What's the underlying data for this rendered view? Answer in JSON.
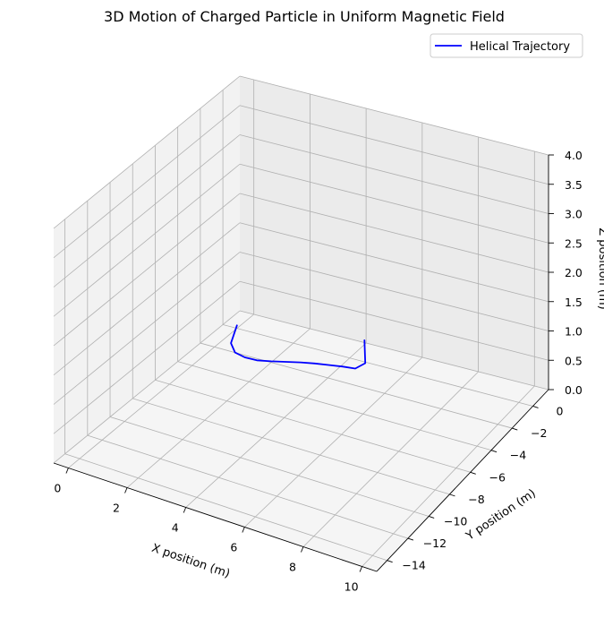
{
  "chart_data": {
    "type": "line",
    "projection": "3d",
    "title": "3D Motion of Charged Particle in Uniform Magnetic Field",
    "xlabel": "X position (m)",
    "ylabel": "Y position (m)",
    "zlabel": "Z position (m)",
    "xlim": [
      -0.5,
      10.5
    ],
    "ylim": [
      -15,
      1.5
    ],
    "zlim": [
      0,
      4
    ],
    "xticks": [
      "0",
      "2",
      "4",
      "6",
      "8",
      "10"
    ],
    "yticks": [
      "0",
      "−2",
      "−4",
      "−6",
      "−8",
      "−10",
      "−12",
      "−14"
    ],
    "zticks": [
      "0.0",
      "0.5",
      "1.0",
      "1.5",
      "2.0",
      "2.5",
      "3.0",
      "3.5",
      "4.0"
    ],
    "grid": true,
    "legend_position": "top-right",
    "series": [
      {
        "name": "Helical Trajectory",
        "color": "#0000ff",
        "x": [
          0,
          0.5,
          1,
          1.5,
          2,
          2.5,
          3,
          3.5,
          4,
          4.5,
          5,
          5.5,
          5.7,
          5.1
        ],
        "y": [
          0,
          -1.8,
          -2.7,
          -3.1,
          -3.3,
          -3.3,
          -3.25,
          -3.2,
          -3.2,
          -3.25,
          -3.3,
          -3.4,
          -3.0,
          -1.5
        ],
        "z": [
          0.05,
          0.1,
          0.15,
          0.2,
          0.25,
          0.3,
          0.35,
          0.4,
          0.45,
          0.5,
          0.55,
          0.6,
          0.65,
          0.7
        ]
      }
    ]
  }
}
